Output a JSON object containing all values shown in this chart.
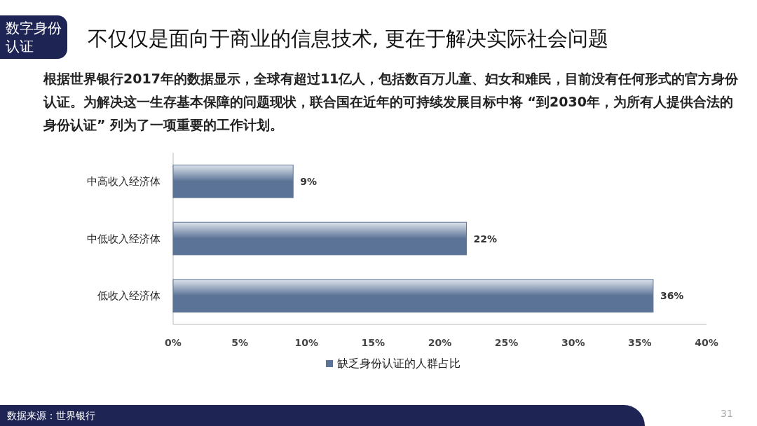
{
  "chart_data": {
    "type": "bar",
    "orientation": "horizontal",
    "title": "不仅仅是面向于商业的信息技术, 更在于解决实际社会问题",
    "subtitle": "根据世界银行2017年的数据显示，全球有超过11亿人，包括数百万儿童、妇女和难民，目前没有任何形式的官方身份认证。为解决这一生存基本保障的问题现状，联合国在近年的可持续发展目标中将 “到2030年，为所有人提供合法的身份认证” 列为了一项重要的工作计划。",
    "categories": [
      "中高收入经济体",
      "中低收入经济体",
      "低收入经济体"
    ],
    "series": [
      {
        "name": "缺乏身份认证的人群占比",
        "color": "#5b7396",
        "values": [
          9,
          22,
          36
        ],
        "value_labels": [
          "9%",
          "22%",
          "36%"
        ]
      }
    ],
    "xlim": [
      0,
      40
    ],
    "xticks": [
      {
        "value": 0,
        "label": "0%"
      },
      {
        "value": 5,
        "label": "5%"
      },
      {
        "value": 10,
        "label": "10%"
      },
      {
        "value": 15,
        "label": "15%"
      },
      {
        "value": 20,
        "label": "20%"
      },
      {
        "value": 25,
        "label": "25%"
      },
      {
        "value": 30,
        "label": "30%"
      },
      {
        "value": 35,
        "label": "35%"
      },
      {
        "value": 40,
        "label": "40%"
      }
    ],
    "legend": "bottom",
    "annotations": [
      "数字身份认证",
      "数据来源：世界银行",
      "31"
    ]
  }
}
